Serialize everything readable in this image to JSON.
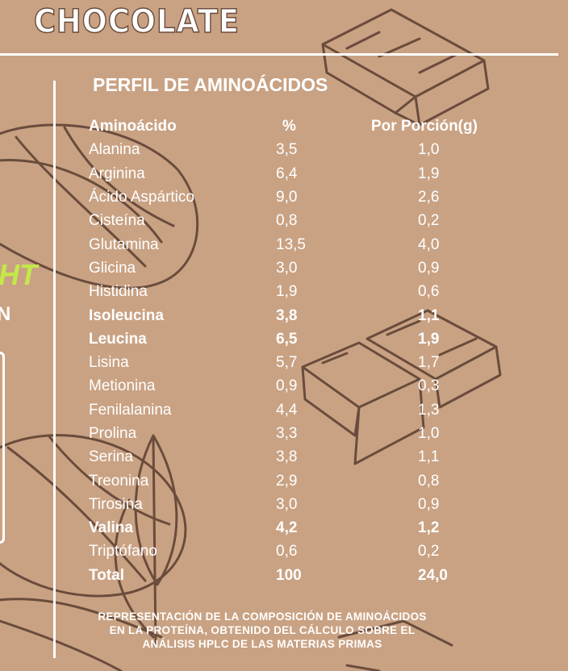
{
  "heading": "CHOCOLATE",
  "panel_title": "PERFIL DE AMINOÁCIDOS",
  "side_text": {
    "ht": "HT",
    "n": "N"
  },
  "table": {
    "headers": [
      "Aminoácido",
      "%",
      "Por Porción(g)"
    ],
    "rows": [
      {
        "name": "Alanina",
        "pct": "3,5",
        "g": "1,0",
        "bold": false
      },
      {
        "name": "Arginina",
        "pct": "6,4",
        "g": "1,9",
        "bold": false
      },
      {
        "name": "Ácido Aspártico",
        "pct": "9,0",
        "g": "2,6",
        "bold": false
      },
      {
        "name": "Cisteína",
        "pct": "0,8",
        "g": "0,2",
        "bold": false
      },
      {
        "name": "Glutamina",
        "pct": "13,5",
        "g": "4,0",
        "bold": false
      },
      {
        "name": "Glicina",
        "pct": "3,0",
        "g": "0,9",
        "bold": false
      },
      {
        "name": "Histidina",
        "pct": "1,9",
        "g": "0,6",
        "bold": false
      },
      {
        "name": "Isoleucina",
        "pct": "3,8",
        "g": "1,1",
        "bold": true
      },
      {
        "name": "Leucina",
        "pct": "6,5",
        "g": "1,9",
        "bold": true
      },
      {
        "name": "Lisina",
        "pct": "5,7",
        "g": "1,7",
        "bold": false
      },
      {
        "name": "Metionina",
        "pct": "0,9",
        "g": "0,3",
        "bold": false
      },
      {
        "name": "Fenilalanina",
        "pct": "4,4",
        "g": "1,3",
        "bold": false
      },
      {
        "name": "Prolina",
        "pct": "3,3",
        "g": "1,0",
        "bold": false
      },
      {
        "name": "Serina",
        "pct": "3,8",
        "g": "1,1",
        "bold": false
      },
      {
        "name": "Treonina",
        "pct": "2,9",
        "g": "0,8",
        "bold": false
      },
      {
        "name": "Tirosina",
        "pct": "3,0",
        "g": "0,9",
        "bold": false
      },
      {
        "name": "Valina",
        "pct": "4,2",
        "g": "1,2",
        "bold": true
      },
      {
        "name": "Triptófano",
        "pct": "0,6",
        "g": "0,2",
        "bold": false
      },
      {
        "name": "Total",
        "pct": "100",
        "g": "24,0",
        "bold": true
      }
    ]
  },
  "footnote_lines": [
    "REPRESENTACIÓN DE LA COMPOSICIÓN DE AMINOÁCIDOS",
    "EN LA PROTEÍNA, OBTENIDO DEL CÁLCULO SOBRE EL",
    "ANÁLISIS HPLC DE LAS MATERIAS PRIMAS"
  ],
  "colors": {
    "background": "#c9a283",
    "line_art": "#6a4c3c",
    "text": "#ffffff",
    "accent": "#c4e84a"
  }
}
